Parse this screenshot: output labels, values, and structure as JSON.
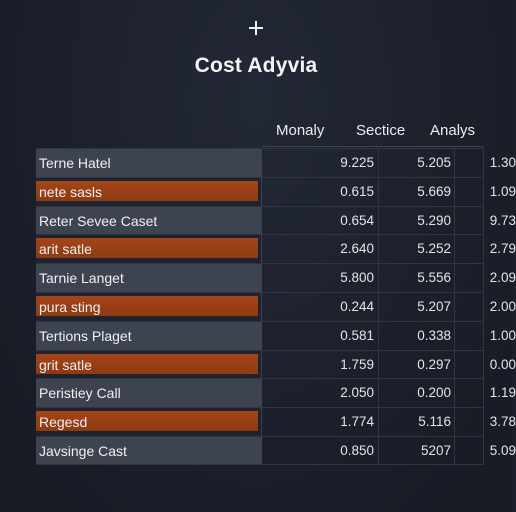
{
  "header": {
    "title": "Cost Adyvia"
  },
  "columns": [
    "Monaly",
    "Sectice",
    "Analys"
  ],
  "rows": [
    {
      "label": "Terne Hatel",
      "style": "gray",
      "values": [
        "9.225",
        "5.205",
        "1.30"
      ]
    },
    {
      "label": "nete sasls",
      "style": "orange",
      "values": [
        "0.615",
        "5.669",
        "1.09"
      ]
    },
    {
      "label": "Reter Sevee Caset",
      "style": "gray",
      "values": [
        "0.654",
        "5.290",
        "9.73"
      ]
    },
    {
      "label": "arit satle",
      "style": "orange",
      "values": [
        "2.640",
        "5.252",
        "2.79"
      ]
    },
    {
      "label": "Tarnie Langet",
      "style": "gray",
      "values": [
        "5.800",
        "5.556",
        "2.09"
      ]
    },
    {
      "label": "pura sting",
      "style": "orange",
      "values": [
        "0.244",
        "5.207",
        "2.00"
      ]
    },
    {
      "label": "Tertions Plaget",
      "style": "gray",
      "values": [
        "0.581",
        "0.338",
        "1.00"
      ]
    },
    {
      "label": "grit satle",
      "style": "orange",
      "values": [
        "1.759",
        "0.297",
        "0.00"
      ]
    },
    {
      "label": "Peristiey Call",
      "style": "gray",
      "values": [
        "2.050",
        "0.200",
        "1.19"
      ]
    },
    {
      "label": "Regesd",
      "style": "orange",
      "values": [
        "1.774",
        "5.116",
        "3.78"
      ]
    },
    {
      "label": "Javsinge Cast",
      "style": "gray",
      "values": [
        "0.850",
        "5207",
        "5.09"
      ]
    }
  ]
}
